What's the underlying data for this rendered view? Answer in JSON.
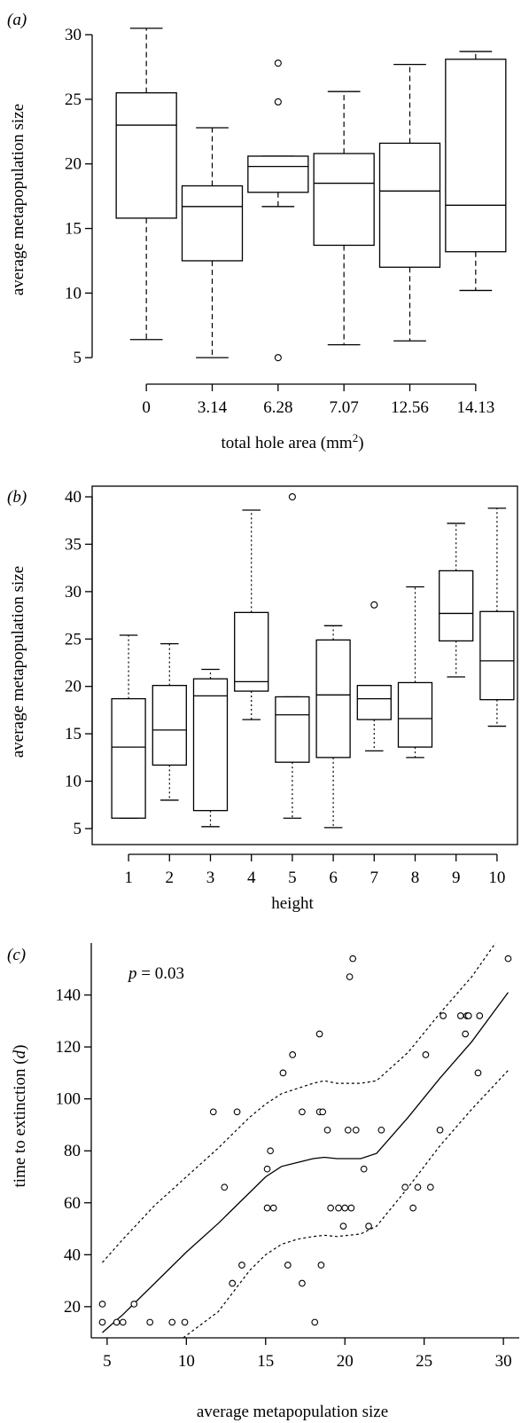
{
  "chart_data": [
    {
      "type": "box",
      "panel_label": "(a)",
      "xlabel": "total hole area (mm",
      "xlabel_sup": "2",
      "xlabel_suffix": ")",
      "ylabel": "average metapopulation size",
      "categories": [
        "0",
        "3.14",
        "6.28",
        "7.07",
        "12.56",
        "14.13"
      ],
      "ylim": [
        3.5,
        32
      ],
      "yticks": [
        5,
        10,
        15,
        20,
        25,
        30
      ],
      "whisker_style": "dashed",
      "boxes": [
        {
          "min": 6.4,
          "q1": 15.8,
          "median": 23.0,
          "q3": 25.5,
          "max": 30.5,
          "outliers": []
        },
        {
          "min": 5.0,
          "q1": 12.5,
          "median": 16.7,
          "q3": 18.3,
          "max": 22.8,
          "outliers": []
        },
        {
          "min": 16.7,
          "q1": 17.8,
          "median": 19.8,
          "q3": 20.6,
          "max": 20.6,
          "outliers": [
            27.8,
            24.8,
            5.0
          ]
        },
        {
          "min": 6.0,
          "q1": 13.7,
          "median": 18.5,
          "q3": 20.8,
          "max": 25.6,
          "outliers": []
        },
        {
          "min": 6.3,
          "q1": 12.0,
          "median": 17.9,
          "q3": 21.6,
          "max": 27.7,
          "outliers": []
        },
        {
          "min": 10.2,
          "q1": 13.2,
          "median": 16.8,
          "q3": 28.1,
          "max": 28.7,
          "outliers": []
        }
      ]
    },
    {
      "type": "box",
      "panel_label": "(b)",
      "xlabel": "height",
      "ylabel": "average metapopulation size",
      "categories": [
        "1",
        "2",
        "3",
        "4",
        "5",
        "6",
        "7",
        "8",
        "9",
        "10"
      ],
      "ylim": [
        3.5,
        41.5
      ],
      "yticks": [
        5,
        10,
        15,
        20,
        25,
        30,
        35,
        40
      ],
      "whisker_style": "dotted",
      "boxes": [
        {
          "min": 6.1,
          "q1": 6.1,
          "median": 13.6,
          "q3": 18.7,
          "max": 25.4,
          "outliers": []
        },
        {
          "min": 8.0,
          "q1": 11.7,
          "median": 15.4,
          "q3": 20.1,
          "max": 24.5,
          "outliers": []
        },
        {
          "min": 5.2,
          "q1": 6.9,
          "median": 19.0,
          "q3": 20.8,
          "max": 21.8,
          "outliers": []
        },
        {
          "min": 16.5,
          "q1": 19.5,
          "median": 20.5,
          "q3": 27.8,
          "max": 38.6,
          "outliers": []
        },
        {
          "min": 6.1,
          "q1": 12.0,
          "median": 17.0,
          "q3": 18.9,
          "max": 18.9,
          "outliers": [
            40.0
          ]
        },
        {
          "min": 5.1,
          "q1": 12.5,
          "median": 19.1,
          "q3": 24.9,
          "max": 26.4,
          "outliers": []
        },
        {
          "min": 13.2,
          "q1": 16.5,
          "median": 18.7,
          "q3": 20.1,
          "max": 20.1,
          "outliers": [
            28.6
          ]
        },
        {
          "min": 12.5,
          "q1": 13.6,
          "median": 16.6,
          "q3": 20.4,
          "max": 30.5,
          "outliers": []
        },
        {
          "min": 21.0,
          "q1": 24.8,
          "median": 27.7,
          "q3": 32.2,
          "max": 37.2,
          "outliers": []
        },
        {
          "min": 15.8,
          "q1": 18.6,
          "median": 22.7,
          "q3": 27.9,
          "max": 38.8,
          "outliers": []
        }
      ]
    },
    {
      "type": "scatter",
      "panel_label": "(c)",
      "annotation_italic": "p",
      "annotation_rest": " = 0.03",
      "xlabel": "average metapopulation size",
      "ylabel": "time to extinction (",
      "ylabel_italic": "d",
      "ylabel_suffix": ")",
      "xlim": [
        4,
        31
      ],
      "ylim": [
        8,
        160
      ],
      "xticks": [
        5,
        10,
        15,
        20,
        25,
        30
      ],
      "yticks": [
        20,
        40,
        60,
        80,
        100,
        120,
        140
      ],
      "points": [
        [
          4.7,
          21
        ],
        [
          4.7,
          14
        ],
        [
          5.6,
          14
        ],
        [
          6.0,
          14
        ],
        [
          6.7,
          21
        ],
        [
          7.7,
          14
        ],
        [
          9.1,
          14
        ],
        [
          9.9,
          14
        ],
        [
          11.7,
          95
        ],
        [
          12.4,
          66
        ],
        [
          13.2,
          95
        ],
        [
          12.9,
          29
        ],
        [
          13.5,
          36
        ],
        [
          15.1,
          58
        ],
        [
          15.1,
          73
        ],
        [
          15.3,
          80
        ],
        [
          15.5,
          58
        ],
        [
          16.1,
          110
        ],
        [
          16.4,
          36
        ],
        [
          16.7,
          117
        ],
        [
          17.3,
          95
        ],
        [
          17.3,
          29
        ],
        [
          18.1,
          14
        ],
        [
          18.4,
          125
        ],
        [
          18.4,
          95
        ],
        [
          18.6,
          95
        ],
        [
          18.5,
          36
        ],
        [
          18.9,
          88
        ],
        [
          19.1,
          58
        ],
        [
          19.6,
          58
        ],
        [
          19.9,
          51
        ],
        [
          20.0,
          58
        ],
        [
          20.2,
          88
        ],
        [
          20.4,
          58
        ],
        [
          20.3,
          147
        ],
        [
          20.5,
          154
        ],
        [
          20.7,
          88
        ],
        [
          21.2,
          73
        ],
        [
          21.5,
          51
        ],
        [
          22.3,
          88
        ],
        [
          23.8,
          66
        ],
        [
          24.3,
          58
        ],
        [
          24.6,
          66
        ],
        [
          25.1,
          117
        ],
        [
          25.4,
          66
        ],
        [
          26.0,
          88
        ],
        [
          26.2,
          132
        ],
        [
          27.3,
          132
        ],
        [
          27.6,
          125
        ],
        [
          27.7,
          132
        ],
        [
          27.8,
          132
        ],
        [
          28.4,
          110
        ],
        [
          28.5,
          132
        ],
        [
          30.3,
          154
        ]
      ],
      "smooth_fit": [
        [
          4.7,
          10
        ],
        [
          6,
          17
        ],
        [
          8,
          29
        ],
        [
          10,
          41
        ],
        [
          12,
          52
        ],
        [
          14,
          64
        ],
        [
          15,
          70
        ],
        [
          16,
          74
        ],
        [
          17,
          75.5
        ],
        [
          18,
          77
        ],
        [
          18.7,
          77.5
        ],
        [
          19.5,
          77
        ],
        [
          21,
          77
        ],
        [
          22,
          79
        ],
        [
          24,
          93
        ],
        [
          26,
          108
        ],
        [
          28,
          122
        ],
        [
          30.3,
          141
        ]
      ],
      "upper_band": [
        [
          4.7,
          37
        ],
        [
          6,
          46
        ],
        [
          8,
          59
        ],
        [
          10,
          70
        ],
        [
          12,
          81
        ],
        [
          14,
          93
        ],
        [
          15,
          98
        ],
        [
          16,
          102
        ],
        [
          17,
          104
        ],
        [
          18,
          106
        ],
        [
          18.7,
          107
        ],
        [
          19.5,
          106
        ],
        [
          21,
          106
        ],
        [
          22,
          107
        ],
        [
          24,
          118
        ],
        [
          26,
          133
        ],
        [
          28,
          147
        ],
        [
          29.5,
          160
        ]
      ],
      "lower_band": [
        [
          9.8,
          8
        ],
        [
          12,
          18
        ],
        [
          14,
          34
        ],
        [
          15,
          40
        ],
        [
          16,
          44
        ],
        [
          17,
          46
        ],
        [
          18,
          47
        ],
        [
          18.7,
          47.5
        ],
        [
          19.5,
          47
        ],
        [
          21,
          48
        ],
        [
          22,
          51
        ],
        [
          24,
          66
        ],
        [
          26,
          82
        ],
        [
          28,
          96
        ],
        [
          30.3,
          111
        ]
      ]
    }
  ]
}
